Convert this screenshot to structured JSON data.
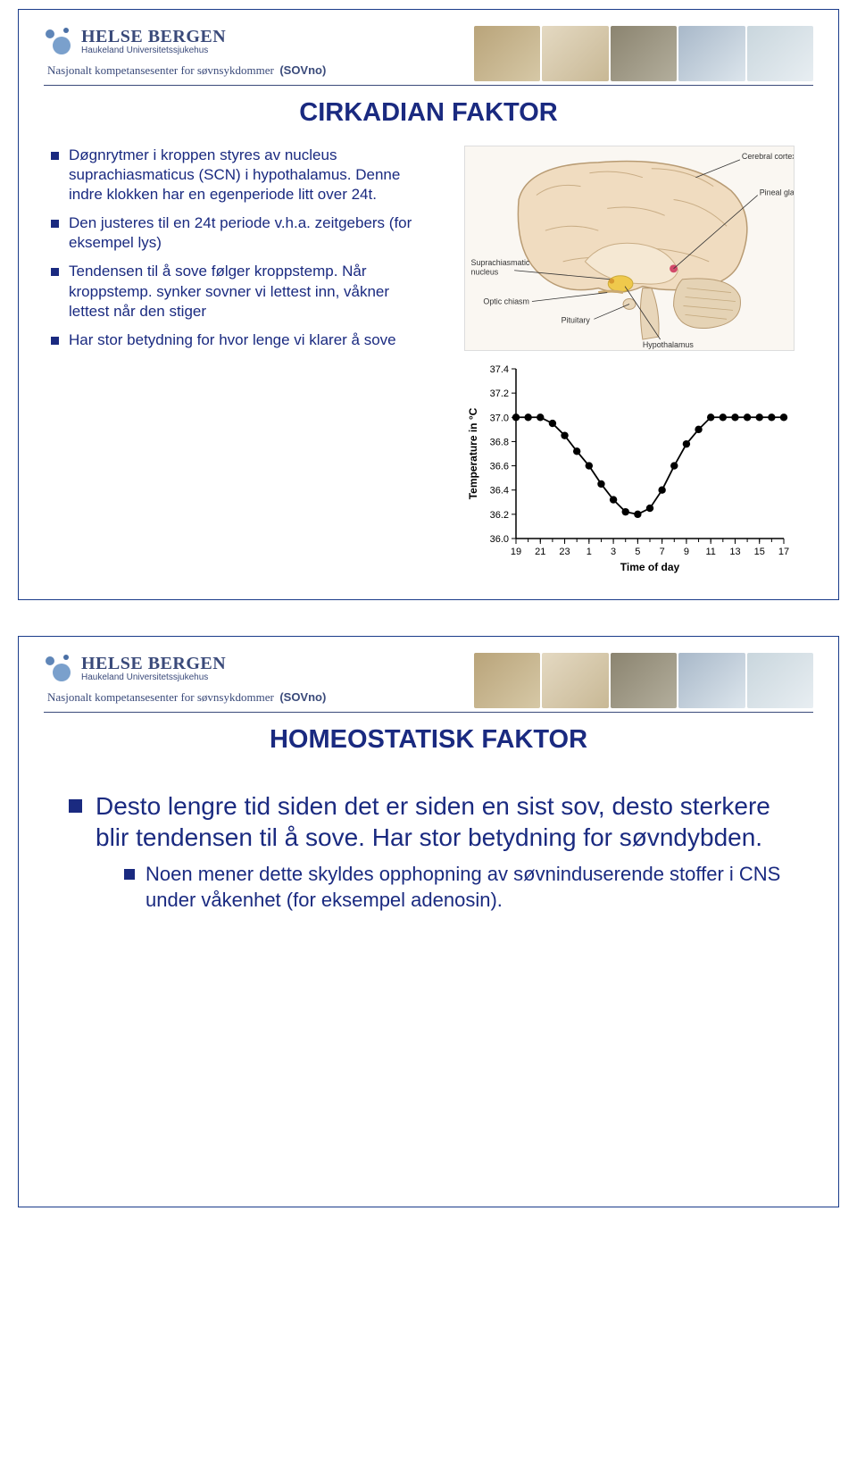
{
  "brand": {
    "name": "HELSE BERGEN",
    "subtitle": "Haukeland Universitetssjukehus",
    "center": "Nasjonalt kompetansesenter for søvnsykdommer",
    "abbr": "(SOVno)",
    "logo_colors": {
      "big": "#7aa0cc",
      "mid": "#5f86b8",
      "small": "#4a6fa5"
    },
    "photo_colors": [
      "#b9a47a",
      "#e4d9c2",
      "#8b8470",
      "#a8b8c9",
      "#c9d6dd"
    ]
  },
  "slide1": {
    "title": "CIRKADIAN FAKTOR",
    "bullets_fontsize": 17,
    "bullets": [
      "Døgnrytmer i kroppen styres av nucleus suprachiasmaticus (SCN) i hypothalamus. Denne indre klokken har en egenperiode litt over 24t.",
      "Den justeres til en 24t periode v.h.a. zeitgebers (for eksempel lys)",
      "Tendensen til å sove følger kroppstemp. Når kroppstemp. synker sovner vi lettest inn, våkner lettest når den stiger",
      "Har stor betydning for hvor lenge vi klarer å sove"
    ],
    "brain_labels": {
      "cortex": "Cerebral cortex",
      "pineal": "Pineal gland",
      "scn": "Suprachiasmatic nucleus",
      "optic": "Optic chiasm",
      "pituitary": "Pituitary",
      "hypo": "Hypothalamus"
    },
    "brain_colors": {
      "outer": "#f0dcc0",
      "inner": "#f5e8d3",
      "stem": "#e5d3b5",
      "outline": "#b89b73",
      "highlight": "#efc94c",
      "pineal": "#d24a6a"
    },
    "chart": {
      "type": "line",
      "ylabel": "Temperature in °C",
      "xlabel": "Time of day",
      "label_fontsize": 12,
      "tick_fontsize": 11,
      "yticks": [
        36.0,
        36.2,
        36.4,
        36.6,
        36.8,
        37.0,
        37.2,
        37.4
      ],
      "xticks": [
        19,
        21,
        23,
        1,
        3,
        5,
        7,
        9,
        11,
        13,
        15,
        17
      ],
      "ylim": [
        36.0,
        37.4
      ],
      "x_hours": [
        19,
        20,
        21,
        22,
        23,
        24,
        1,
        2,
        3,
        4,
        5,
        6,
        7,
        8,
        9,
        10,
        11,
        12,
        13,
        14,
        15,
        16,
        17
      ],
      "values": [
        37.0,
        37.0,
        37.0,
        36.95,
        36.85,
        36.72,
        36.6,
        36.45,
        36.32,
        36.22,
        36.2,
        36.25,
        36.4,
        36.6,
        36.78,
        36.9,
        37.0,
        37.0,
        37.0,
        37.0,
        37.0,
        37.0,
        37.0
      ],
      "line_color": "#000000",
      "marker_fill": "#000000",
      "marker_radius": 4.2,
      "line_width": 1.8,
      "axis_color": "#000000",
      "background_color": "#ffffff"
    }
  },
  "slide2": {
    "title": "HOMEOSTATISK FAKTOR",
    "bullet": "Desto lengre tid siden det er siden en sist sov, desto sterkere blir tendensen til å sove. Har stor betydning for søvndybden.",
    "sub_bullet": "Noen mener dette skyldes opphopning av søvninduserende stoffer i CNS under våkenhet (for eksempel adenosin).",
    "main_fontsize": 28,
    "sub_fontsize": 22
  },
  "text_color": "#1a2a80"
}
